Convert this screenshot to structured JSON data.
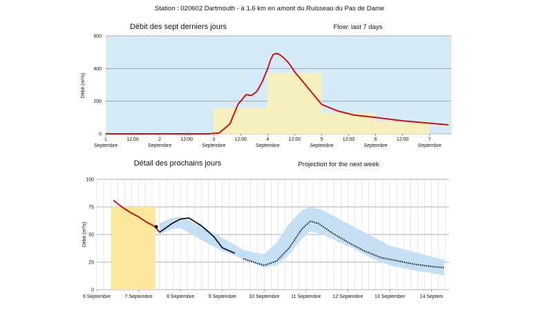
{
  "station_title": "Station : 020602   Dartmouth - à 1,6 km en amont du Ruisseau du Pas de Dame",
  "colors": {
    "plot_bg_top": "#d6ebf8",
    "flow_line": "#cc1111",
    "daily_bars": "#f6f0c0",
    "observed_bar": "#fbe89c",
    "forecast_band": "#c5dff5",
    "forecast_line": "#111111",
    "grid": "#999999"
  },
  "chart_data": [
    {
      "type": "line",
      "title": "Débit des sept derniers jours",
      "subtitle": "Flow: last 7 days",
      "ylabel": "Débit (m³/s)",
      "xlabel": "",
      "ylim": [
        0,
        600
      ],
      "yticks": [
        "0",
        "200",
        "400",
        "600"
      ],
      "grid": true,
      "x_ticks": [
        {
          "label": "1",
          "sub": "Septembre",
          "x": 0
        },
        {
          "label": "12:00",
          "sub": "",
          "x": 0.5
        },
        {
          "label": "2",
          "sub": "Septembre",
          "x": 1
        },
        {
          "label": "12:00",
          "sub": "",
          "x": 1.5
        },
        {
          "label": "3",
          "sub": "Septembre",
          "x": 2
        },
        {
          "label": "12:00",
          "sub": "",
          "x": 2.5
        },
        {
          "label": "4",
          "sub": "Septembre",
          "x": 3
        },
        {
          "label": "12:00",
          "sub": "",
          "x": 3.5
        },
        {
          "label": "5",
          "sub": "Septembre",
          "x": 4
        },
        {
          "label": "12:00",
          "sub": "",
          "x": 4.5
        },
        {
          "label": "6",
          "sub": "Septembre",
          "x": 5
        },
        {
          "label": "12:00",
          "sub": "",
          "x": 5.5
        },
        {
          "label": "7",
          "sub": "Septembre",
          "x": 6
        }
      ],
      "daily_mean_bars": [
        {
          "day": "1 Septembre",
          "value": 0
        },
        {
          "day": "2 Septembre",
          "value": 0
        },
        {
          "day": "3 Septembre",
          "value": 160
        },
        {
          "day": "4 Septembre",
          "value": 375
        },
        {
          "day": "5 Septembre",
          "value": 130
        },
        {
          "day": "6 Septembre",
          "value": 75
        }
      ],
      "series": [
        {
          "x": [
            0,
            1.0,
            1.9,
            2.1,
            2.3,
            2.45,
            2.6,
            2.7,
            2.8,
            2.9,
            3.0,
            3.05,
            3.1,
            3.15,
            3.2,
            3.3,
            3.4,
            3.5,
            3.6,
            3.8,
            4.0,
            4.3,
            4.6,
            5.0,
            5.5,
            6.0,
            6.35
          ],
          "y": [
            0,
            0,
            0,
            5,
            60,
            180,
            240,
            235,
            260,
            320,
            400,
            450,
            485,
            492,
            490,
            465,
            430,
            380,
            340,
            260,
            180,
            140,
            115,
            100,
            80,
            65,
            55
          ]
        }
      ]
    },
    {
      "type": "line",
      "title": "Détail des prochains jours",
      "subtitle": "Projection for the next week",
      "ylabel": "Débit (m³/s)",
      "xlabel": "",
      "ylim": [
        0,
        100
      ],
      "yticks": [
        "0",
        "25",
        "50",
        "75",
        "100"
      ],
      "grid": true,
      "x_ticks": [
        {
          "label": "6 Septembre",
          "x": 6
        },
        {
          "label": "7 Septembre",
          "x": 7
        },
        {
          "label": "8 Septembre",
          "x": 8
        },
        {
          "label": "9 Septembre",
          "x": 9
        },
        {
          "label": "10 Septembre",
          "x": 10
        },
        {
          "label": "11 Septembre",
          "x": 11
        },
        {
          "label": "12 Septembre",
          "x": 12
        },
        {
          "label": "13 Septembre",
          "x": 13
        },
        {
          "label": "14 Septem",
          "x": 14
        }
      ],
      "observed_period_bar": {
        "x_start": 6.35,
        "x_end": 7.4,
        "value": 75
      },
      "observed": {
        "x": [
          6.4,
          6.6,
          6.8,
          7.0,
          7.2,
          7.4,
          7.5
        ],
        "y": [
          81,
          75,
          70,
          66,
          61,
          57,
          52
        ]
      },
      "current_point": {
        "x": 7.42,
        "y": 57
      },
      "forecast_band": {
        "x": [
          7.5,
          7.8,
          8.0,
          8.5,
          9.0,
          9.5,
          10.0,
          10.3,
          10.6,
          10.9,
          11.1,
          11.4,
          11.8,
          12.2,
          12.6,
          13.0,
          13.5,
          14.0,
          14.3
        ],
        "upper": [
          60,
          65,
          66,
          58,
          47,
          36,
          32,
          43,
          60,
          72,
          75,
          72,
          64,
          56,
          48,
          40,
          35,
          30,
          27
        ],
        "lower": [
          50,
          55,
          56,
          45,
          35,
          28,
          20,
          22,
          32,
          46,
          53,
          50,
          43,
          36,
          28,
          22,
          18,
          15,
          13
        ]
      },
      "series": [
        {
          "x": [
            7.5,
            7.8,
            8.0,
            8.2,
            8.5,
            8.8,
            9.0,
            9.3
          ],
          "y": [
            52,
            60,
            64,
            65,
            58,
            48,
            38,
            33
          ]
        },
        {
          "x": [
            9.5,
            10.0,
            10.3,
            10.6,
            10.9,
            11.1,
            11.3,
            11.6,
            12.0,
            12.4,
            12.8,
            13.2,
            13.6,
            14.0,
            14.3
          ],
          "y": [
            28,
            22,
            26,
            38,
            55,
            62,
            60,
            52,
            43,
            35,
            29,
            26,
            23,
            21,
            20
          ]
        }
      ]
    }
  ]
}
